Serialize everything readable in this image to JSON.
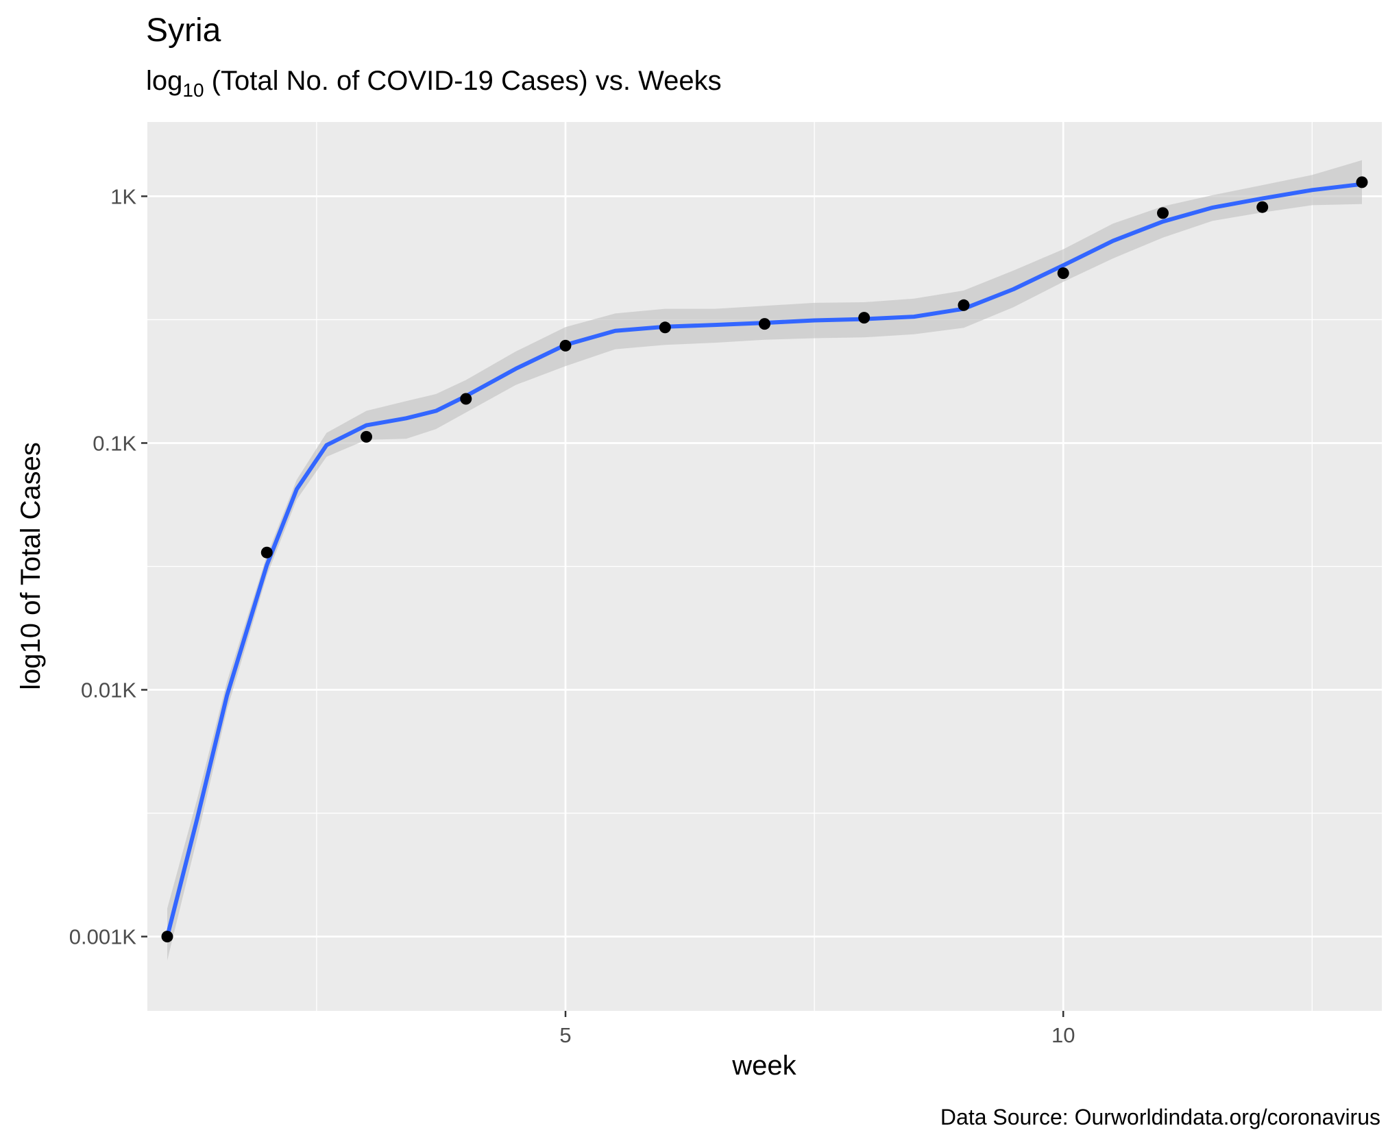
{
  "chart_data": {
    "type": "scatter",
    "title": "Syria",
    "subtitle": {
      "prefix": "log",
      "subscript": "10",
      "suffix": " (Total No. of COVID-19 Cases) vs. Weeks"
    },
    "xlabel": "week",
    "ylabel": "log10 of Total Cases",
    "caption": "Data Source: Ourworldindata.org/coronavirus",
    "y_scale": "log10",
    "xlim": [
      0.8,
      13.2
    ],
    "ylim": [
      0.5,
      2000
    ],
    "x_ticks": [
      {
        "value": 5,
        "label": "5"
      },
      {
        "value": 10,
        "label": "10"
      }
    ],
    "x_minor_ticks": [
      2.5,
      7.5,
      12.5
    ],
    "y_ticks": [
      {
        "value": 1,
        "label": "0.001K"
      },
      {
        "value": 10,
        "label": "0.01K"
      },
      {
        "value": 100,
        "label": "0.1K"
      },
      {
        "value": 1000,
        "label": "1K"
      }
    ],
    "y_minor_ticks": [
      3.162,
      31.62,
      316.2
    ],
    "grid": true,
    "series": [
      {
        "kind": "points",
        "x": [
          1,
          2,
          3,
          4,
          5,
          6,
          7,
          8,
          9,
          10,
          11,
          12,
          13
        ],
        "y": [
          1,
          36,
          106,
          151,
          248,
          294,
          304,
          322,
          362,
          488,
          855,
          904,
          1140
        ]
      },
      {
        "kind": "smooth",
        "x": [
          1,
          1.3,
          1.6,
          2,
          2.3,
          2.6,
          3,
          3.4,
          3.7,
          4,
          4.5,
          5,
          5.5,
          6,
          6.5,
          7,
          7.5,
          8,
          8.5,
          9,
          9.5,
          10,
          10.5,
          11,
          11.5,
          12,
          12.5,
          13
        ],
        "y": [
          1,
          3,
          9.5,
          32,
          65,
          98,
          118,
          126,
          135,
          155,
          200,
          250,
          285,
          296,
          301,
          307,
          314,
          318,
          325,
          350,
          420,
          525,
          660,
          790,
          900,
          980,
          1060,
          1120
        ],
        "ci_lower": [
          0.8,
          2.5,
          8.3,
          29,
          59,
          88,
          103,
          104,
          114,
          133,
          172,
          205,
          240,
          250,
          255,
          262,
          266,
          268,
          276,
          293,
          355,
          450,
          560,
          680,
          795,
          860,
          920,
          930
        ],
        "ci_upper": [
          1.3,
          3.6,
          10.8,
          35,
          71,
          110,
          135,
          148,
          158,
          180,
          235,
          295,
          335,
          350,
          350,
          360,
          370,
          372,
          385,
          415,
          500,
          610,
          775,
          910,
          1010,
          1110,
          1220,
          1400
        ]
      }
    ],
    "colors": {
      "panel": "#ebebeb",
      "grid_major": "#ffffff",
      "points": "#000000",
      "smooth_line": "#3366ff",
      "ci_band": "#bfbfbf",
      "tick_text": "#4d4d4d"
    }
  }
}
